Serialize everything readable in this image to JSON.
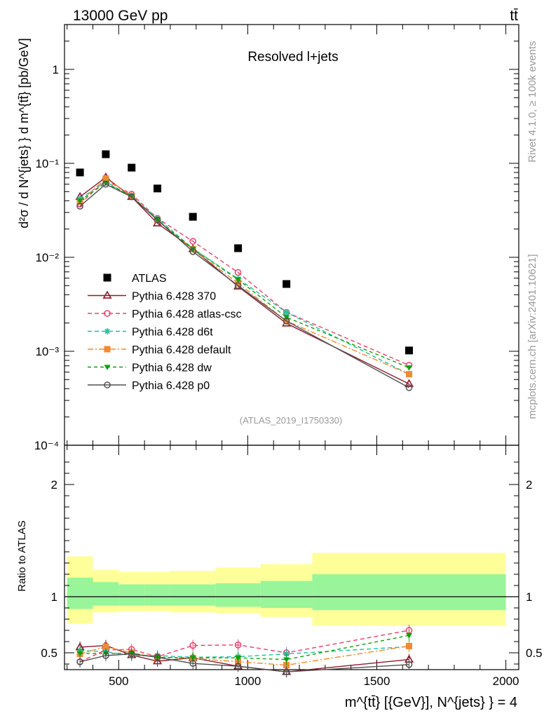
{
  "header": {
    "left_title": "13000 GeV pp",
    "right_title": "tt̄"
  },
  "side_labels": {
    "rivet": "Rivet 4.1.0, ≥ 100k events",
    "mcplots": "mcplots.cern.ch [arXiv:2401.10621]"
  },
  "colors": {
    "ATLAS": "#000000",
    "p370": "#8b1a2b",
    "atlas_csc": "#e8406a",
    "d6t": "#20c0a0",
    "default": "#f08a30",
    "dw": "#10a010",
    "p0": "#505050",
    "band_inner": "#99f599",
    "band_outer": "#ffff99"
  },
  "chart_data": [
    {
      "type": "line",
      "panel": "main",
      "title": "Resolved l+jets",
      "analysis_tag": "(ATLAS_2019_I1750330)",
      "ylabel": "d²σ / d N^{jets} } d m^{tt̄} [pb/GeV]",
      "yscale": "log",
      "ylim": [
        0.0001,
        3
      ],
      "xlim": [
        290,
        2050
      ],
      "ytick_labels": [
        "1",
        "10⁻¹",
        "10⁻²",
        "10⁻³",
        "10⁻⁴"
      ],
      "legend_position": "center-left",
      "series": [
        {
          "name": "ATLAS",
          "key": "ATLAS",
          "marker": "square",
          "dash": "none",
          "x": [
            350,
            450,
            550,
            650,
            787.5,
            962.5,
            1150,
            1625
          ],
          "y": [
            0.08,
            0.125,
            0.09,
            0.054,
            0.027,
            0.0125,
            0.0052,
            0.00102
          ]
        },
        {
          "name": "Pythia 6.428 370",
          "key": "p370",
          "marker": "triangle-open",
          "dash": "solid",
          "x": [
            350,
            450,
            550,
            650,
            787.5,
            962.5,
            1150,
            1625
          ],
          "y": [
            0.044,
            0.071,
            0.044,
            0.023,
            0.0123,
            0.0049,
            0.00198,
            0.00045
          ]
        },
        {
          "name": "Pythia 6.428 atlas-csc",
          "key": "atlas_csc",
          "marker": "circle-open",
          "dash": "6,4",
          "x": [
            350,
            450,
            550,
            650,
            787.5,
            962.5,
            1150,
            1625
          ],
          "y": [
            0.037,
            0.066,
            0.047,
            0.026,
            0.0148,
            0.0069,
            0.0026,
            0.00071
          ]
        },
        {
          "name": "Pythia 6.428 d6t",
          "key": "d6t",
          "marker": "star",
          "dash": "6,4",
          "x": [
            350,
            450,
            550,
            650,
            787.5,
            962.5,
            1150,
            1625
          ],
          "y": [
            0.042,
            0.064,
            0.044,
            0.026,
            0.0124,
            0.0059,
            0.0026,
            0.00057
          ]
        },
        {
          "name": "Pythia 6.428 default",
          "key": "default",
          "marker": "square",
          "dash": "8,3,2,3",
          "x": [
            350,
            450,
            550,
            650,
            787.5,
            962.5,
            1150,
            1625
          ],
          "y": [
            0.039,
            0.069,
            0.045,
            0.025,
            0.0122,
            0.0053,
            0.0021,
            0.00057
          ]
        },
        {
          "name": "Pythia 6.428 dw",
          "key": "dw",
          "marker": "triangle-down",
          "dash": "5,4",
          "x": [
            350,
            450,
            550,
            650,
            787.5,
            962.5,
            1150,
            1625
          ],
          "y": [
            0.04,
            0.062,
            0.045,
            0.025,
            0.0123,
            0.0058,
            0.0023,
            0.00067
          ]
        },
        {
          "name": "Pythia 6.428 p0",
          "key": "p0",
          "marker": "circle-open",
          "dash": "solid",
          "x": [
            350,
            450,
            550,
            650,
            787.5,
            962.5,
            1150,
            1625
          ],
          "y": [
            0.035,
            0.06,
            0.044,
            0.025,
            0.0115,
            0.005,
            0.0021,
            0.00041
          ]
        }
      ]
    },
    {
      "type": "line",
      "panel": "ratio",
      "ylabel": "Ratio to ATLAS",
      "xlabel": "m^{tt̄} [{GeV}], N^{jets} } = 4",
      "ylim": [
        0.35,
        2.35
      ],
      "xlim": [
        290,
        2050
      ],
      "xtick_labels": [
        "500",
        "1000",
        "1500",
        "2000"
      ],
      "ytick_labels": [
        "0.5",
        "1",
        "2"
      ],
      "ratio_right_labels": [
        "0.5",
        "1",
        "2"
      ],
      "bands": [
        {
          "x0": 300,
          "x1": 400,
          "inner": [
            0.89,
            1.17
          ],
          "outer": [
            0.76,
            1.36
          ]
        },
        {
          "x0": 400,
          "x1": 500,
          "inner": [
            0.92,
            1.13
          ],
          "outer": [
            0.86,
            1.24
          ]
        },
        {
          "x0": 500,
          "x1": 600,
          "inner": [
            0.92,
            1.11
          ],
          "outer": [
            0.87,
            1.22
          ]
        },
        {
          "x0": 600,
          "x1": 700,
          "inner": [
            0.92,
            1.11
          ],
          "outer": [
            0.87,
            1.22
          ]
        },
        {
          "x0": 700,
          "x1": 875,
          "inner": [
            0.92,
            1.11
          ],
          "outer": [
            0.86,
            1.23
          ]
        },
        {
          "x0": 875,
          "x1": 1050,
          "inner": [
            0.91,
            1.12
          ],
          "outer": [
            0.85,
            1.26
          ]
        },
        {
          "x0": 1050,
          "x1": 1250,
          "inner": [
            0.9,
            1.14
          ],
          "outer": [
            0.82,
            1.29
          ]
        },
        {
          "x0": 1250,
          "x1": 2000,
          "inner": [
            0.88,
            1.2
          ],
          "outer": [
            0.74,
            1.39
          ]
        }
      ],
      "series": [
        {
          "key": "p370",
          "x": [
            350,
            450,
            550,
            650,
            787.5,
            962.5,
            1150,
            1625
          ],
          "y": [
            0.55,
            0.565,
            0.48,
            0.425,
            0.455,
            0.38,
            0.33,
            0.44
          ]
        },
        {
          "key": "atlas_csc",
          "x": [
            350,
            450,
            550,
            650,
            787.5,
            962.5,
            1150,
            1625
          ],
          "y": [
            0.42,
            0.525,
            0.53,
            0.465,
            0.565,
            0.57,
            0.5,
            0.7
          ]
        },
        {
          "key": "d6t",
          "x": [
            350,
            450,
            550,
            650,
            787.5,
            962.5,
            1150,
            1625
          ],
          "y": [
            0.52,
            0.51,
            0.475,
            0.475,
            0.46,
            0.465,
            0.49,
            0.555
          ]
        },
        {
          "key": "default",
          "x": [
            350,
            450,
            550,
            650,
            787.5,
            962.5,
            1150,
            1625
          ],
          "y": [
            0.49,
            0.555,
            0.5,
            0.46,
            0.45,
            0.42,
            0.39,
            0.56
          ]
        },
        {
          "key": "dw",
          "x": [
            350,
            450,
            550,
            650,
            787.5,
            962.5,
            1150,
            1625
          ],
          "y": [
            0.495,
            0.495,
            0.495,
            0.46,
            0.455,
            0.455,
            0.44,
            0.655
          ]
        },
        {
          "key": "p0",
          "x": [
            350,
            450,
            550,
            650,
            787.5,
            962.5,
            1150,
            1625
          ],
          "y": [
            0.42,
            0.475,
            0.49,
            0.46,
            0.405,
            0.38,
            0.33,
            0.395
          ]
        }
      ]
    }
  ]
}
